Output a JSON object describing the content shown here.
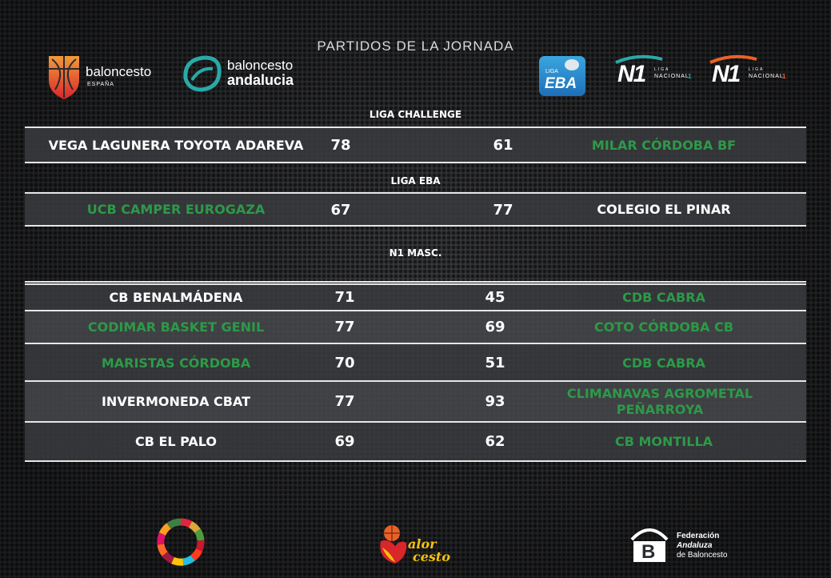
{
  "header": {
    "title": "PARTIDOS DE LA JORNADA",
    "logos": {
      "fed_espana": {
        "name": "baloncesto",
        "sub": "ESPAÑA"
      },
      "andalucia": {
        "name_top": "baloncesto",
        "name_bottom": "andalucia"
      },
      "eba": {
        "small": "LIGA",
        "big": "EBA"
      },
      "n1_teal": {
        "mark": "N1",
        "small": "LIGA",
        "text": "NACIONAL",
        "num": "1"
      },
      "n1_orange": {
        "mark": "N1",
        "small": "LIGA",
        "text": "NACIONAL",
        "num": "1"
      }
    }
  },
  "sections": [
    {
      "label": "LIGA CHALLENGE"
    },
    {
      "label": "LIGA EBA"
    },
    {
      "label": "N1 MASC."
    }
  ],
  "matches": [
    {
      "home": "VEGA LAGUNERA TOYOTA ADAREVA",
      "home_score": "78",
      "away_score": "61",
      "away": "MILAR CÓRDOBA BF"
    },
    {
      "home": "UCB CAMPER EUROGAZA",
      "home_score": "67",
      "away_score": "77",
      "away": "COLEGIO EL PINAR"
    },
    {
      "home": "CB BENALMÁDENA",
      "home_score": "71",
      "away_score": "45",
      "away": "CDB CABRA"
    },
    {
      "home": "CODIMAR BASKET GENIL",
      "home_score": "77",
      "away_score": "69",
      "away": "COTO CÓRDOBA CB"
    },
    {
      "home": "MARISTAS CÓRDOBA",
      "home_score": "70",
      "away_score": "51",
      "away": "CDB CABRA"
    },
    {
      "home": "INVERMONEDA CBAT",
      "home_score": "77",
      "away_score": "93",
      "away": "CLIMANAVAS AGROMETAL PEÑARROYA"
    },
    {
      "home": "CB EL PALO",
      "home_score": "69",
      "away_score": "62",
      "away": "CB MONTILLA"
    }
  ],
  "footer": {
    "valorcesto": {
      "line1": "alor",
      "line2": "cesto"
    },
    "federacion": {
      "mark": "B",
      "line1": "Federación",
      "line2": "Andaluza",
      "line3": "de Baloncesto"
    }
  },
  "colors": {
    "green": "#2c9a48",
    "white": "#ffffff",
    "orange": "#e8622a",
    "teal": "#2aa9a6"
  }
}
